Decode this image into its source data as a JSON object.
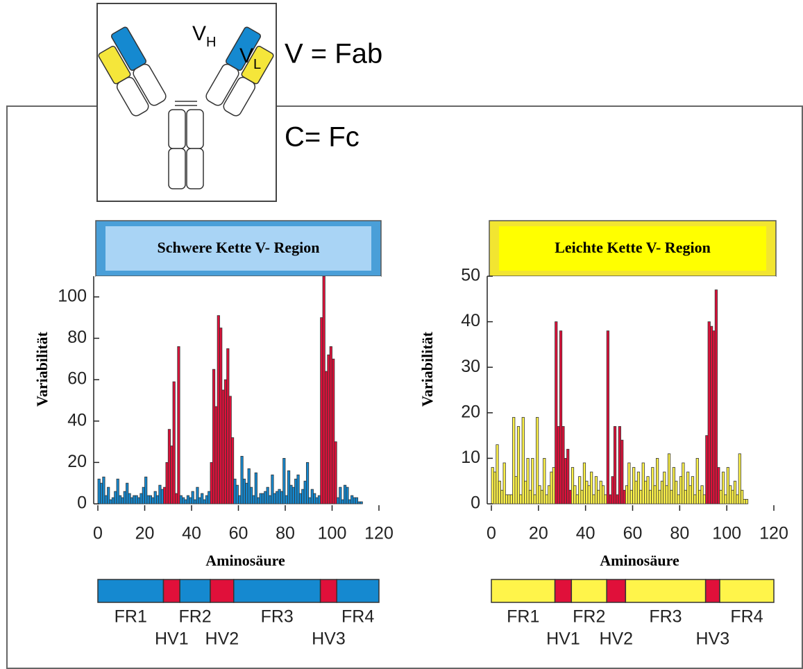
{
  "diagram": {
    "fab_label": "V = Fab",
    "fc_label": "C= Fc",
    "vh": "V",
    "vh_sub": "H",
    "vl": "V",
    "vl_sub": "L"
  },
  "chart_data": [
    {
      "type": "histogram",
      "title": "Schwere Kette V- Region",
      "xlabel": "Aminosäure",
      "ylabel": "Variabilität",
      "bins": [
        0,
        1,
        2,
        3,
        4,
        5,
        6,
        7,
        8,
        9,
        10,
        11,
        12,
        13,
        14,
        15,
        16,
        17,
        18,
        19,
        20,
        21,
        22,
        23,
        24,
        25,
        26,
        27,
        28,
        29,
        30,
        31,
        32,
        33,
        34,
        35,
        36,
        37,
        38,
        39,
        40,
        41,
        42,
        43,
        44,
        45,
        46,
        47,
        48,
        49,
        50,
        51,
        52,
        53,
        54,
        55,
        56,
        57,
        58,
        59,
        60,
        61,
        62,
        63,
        64,
        65,
        66,
        67,
        68,
        69,
        70,
        71,
        72,
        73,
        74,
        75,
        76,
        77,
        78,
        79,
        80,
        81,
        82,
        83,
        84,
        85,
        86,
        87,
        88,
        89,
        90,
        91,
        92,
        93,
        94,
        95,
        96,
        97,
        98,
        99,
        100,
        101,
        102,
        103,
        104,
        105,
        106,
        107,
        108,
        109,
        110,
        111,
        112,
        113
      ],
      "values": [
        12,
        10,
        13,
        4,
        8,
        2,
        3,
        6,
        12,
        4,
        3,
        6,
        10,
        5,
        3,
        4,
        4,
        3,
        5,
        8,
        13,
        4,
        4,
        3,
        6,
        4,
        9,
        7,
        8,
        20,
        36,
        28,
        59,
        5,
        76,
        4,
        3,
        2,
        4,
        3,
        6,
        2,
        8,
        3,
        5,
        2,
        4,
        6,
        20,
        65,
        47,
        91,
        85,
        55,
        60,
        75,
        52,
        32,
        12,
        9,
        4,
        23,
        12,
        10,
        17,
        8,
        4,
        15,
        3,
        5,
        5,
        6,
        8,
        4,
        14,
        5,
        6,
        7,
        6,
        22,
        4,
        16,
        9,
        8,
        12,
        14,
        5,
        7,
        11,
        20,
        3,
        7,
        5,
        3,
        4,
        90,
        110,
        64,
        72,
        76,
        70,
        30,
        3,
        8,
        2,
        9,
        8,
        2,
        4,
        3,
        3,
        1,
        1
      ],
      "regions": [
        {
          "label": "FR1",
          "start": 0,
          "end": 28,
          "color": "#1589d0"
        },
        {
          "label": "HV1",
          "start": 28,
          "end": 35,
          "color": "#e0103a"
        },
        {
          "label": "FR2",
          "start": 35,
          "end": 48,
          "color": "#1589d0"
        },
        {
          "label": "HV2",
          "start": 48,
          "end": 58,
          "color": "#e0103a"
        },
        {
          "label": "FR3",
          "start": 58,
          "end": 95,
          "color": "#1589d0"
        },
        {
          "label": "HV3",
          "start": 95,
          "end": 102,
          "color": "#e0103a"
        },
        {
          "label": "FR4",
          "start": 102,
          "end": 120,
          "color": "#1589d0"
        }
      ],
      "xlim": [
        0,
        120
      ],
      "xticks": [
        0,
        20,
        40,
        60,
        80,
        100,
        120
      ],
      "ylim": [
        0,
        110
      ],
      "yticks": [
        0,
        20,
        40,
        60,
        80,
        100
      ]
    },
    {
      "type": "histogram",
      "title": "Leichte Kette V- Region",
      "xlabel": "Aminosäure",
      "ylabel": "Variabilität",
      "bins": [
        0,
        1,
        2,
        3,
        4,
        5,
        6,
        7,
        8,
        9,
        10,
        11,
        12,
        13,
        14,
        15,
        16,
        17,
        18,
        19,
        20,
        21,
        22,
        23,
        24,
        25,
        26,
        27,
        28,
        29,
        30,
        31,
        32,
        33,
        34,
        35,
        36,
        37,
        38,
        39,
        40,
        41,
        42,
        43,
        44,
        45,
        46,
        47,
        48,
        49,
        50,
        51,
        52,
        53,
        54,
        55,
        56,
        57,
        58,
        59,
        60,
        61,
        62,
        63,
        64,
        65,
        66,
        67,
        68,
        69,
        70,
        71,
        72,
        73,
        74,
        75,
        76,
        77,
        78,
        79,
        80,
        81,
        82,
        83,
        84,
        85,
        86,
        87,
        88,
        89,
        90,
        91,
        92,
        93,
        94,
        95,
        96,
        97,
        98,
        99,
        100,
        101,
        102,
        103,
        104,
        105,
        106,
        107,
        108,
        109,
        110
      ],
      "values": [
        8,
        7,
        13,
        5,
        3,
        9,
        2,
        2,
        2,
        19,
        6,
        17,
        2,
        19,
        5,
        10,
        3,
        10,
        2,
        19,
        4,
        3,
        10,
        2,
        4,
        7,
        8,
        40,
        17,
        38,
        17,
        10,
        12,
        3,
        8,
        4,
        2,
        6,
        3,
        9,
        5,
        4,
        7,
        2,
        6,
        3,
        5,
        4,
        2,
        38,
        2,
        6,
        17,
        2,
        17,
        14,
        3,
        4,
        9,
        3,
        8,
        5,
        7,
        3,
        9,
        5,
        6,
        3,
        8,
        4,
        10,
        3,
        5,
        7,
        4,
        11,
        3,
        8,
        5,
        2,
        6,
        9,
        3,
        7,
        4,
        6,
        2,
        10,
        3,
        4,
        2,
        15,
        40,
        39,
        38,
        47,
        8,
        3,
        7,
        2,
        8,
        4,
        3,
        5,
        2,
        11,
        3,
        1,
        1,
        0
      ],
      "regions": [
        {
          "label": "FR1",
          "start": 0,
          "end": 27,
          "color": "#fff44a"
        },
        {
          "label": "HV1",
          "start": 27,
          "end": 34,
          "color": "#e0103a"
        },
        {
          "label": "FR2",
          "start": 34,
          "end": 49,
          "color": "#fff44a"
        },
        {
          "label": "HV2",
          "start": 49,
          "end": 57,
          "color": "#e0103a"
        },
        {
          "label": "FR3",
          "start": 57,
          "end": 91,
          "color": "#fff44a"
        },
        {
          "label": "HV3",
          "start": 91,
          "end": 97,
          "color": "#e0103a"
        },
        {
          "label": "FR4",
          "start": 97,
          "end": 120,
          "color": "#fff44a"
        }
      ],
      "xlim": [
        0,
        120
      ],
      "xticks": [
        0,
        20,
        40,
        60,
        80,
        100,
        120
      ],
      "ylim": [
        0,
        50
      ],
      "yticks": [
        0,
        10,
        20,
        30,
        40,
        50
      ]
    }
  ]
}
